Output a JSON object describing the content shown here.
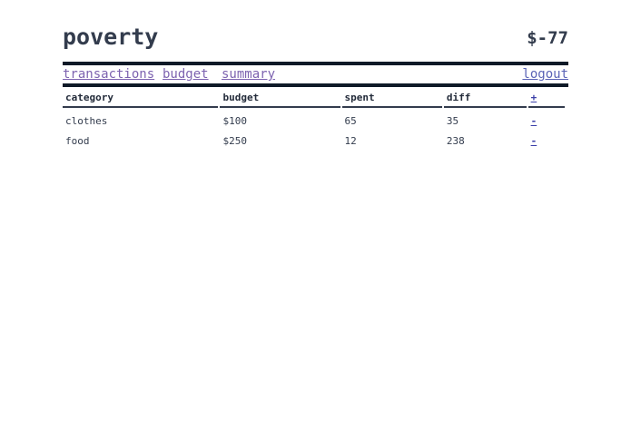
{
  "header": {
    "title": "poverty",
    "balance": "$-77"
  },
  "nav": {
    "items": [
      {
        "label": "transactions"
      },
      {
        "label": "budget"
      },
      {
        "label": "summary"
      }
    ],
    "logout_label": "logout"
  },
  "table": {
    "columns": [
      "category",
      "budget",
      "spent",
      "diff",
      "+"
    ],
    "rows": [
      {
        "category": "clothes",
        "budget": "$100",
        "spent": "65",
        "diff": "35",
        "action": "-"
      },
      {
        "category": "food",
        "budget": "$250",
        "spent": "12",
        "diff": "238",
        "action": "-"
      }
    ]
  },
  "colors": {
    "text": "#333c4d",
    "rule": "#0f1a28",
    "link": "#7d63b0",
    "action_link": "#3b3fa8"
  }
}
